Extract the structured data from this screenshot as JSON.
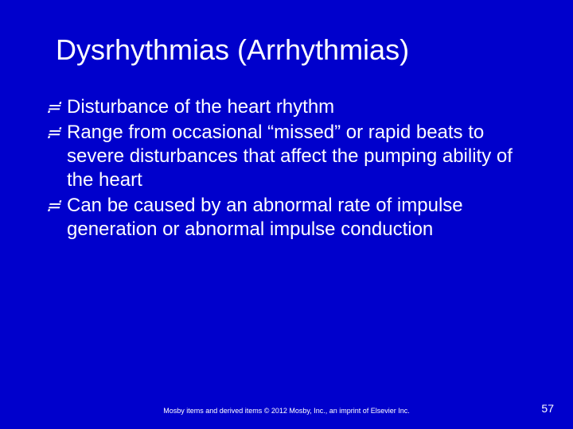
{
  "title": "Dysrhythmias (Arrhythmias)",
  "bullets": [
    "Disturbance of the heart rhythm",
    "Range from occasional “missed” or rapid beats to severe disturbances that affect the pumping ability of the heart",
    "Can be caused by an abnormal rate of impulse generation or abnormal impulse conduction"
  ],
  "copyright": "Mosby items and derived items © 2012 Mosby, Inc., an imprint of Elsevier Inc.",
  "page_number": "57",
  "bullet_marker": "≓",
  "colors": {
    "background": "#0000cc",
    "text": "#ffffff"
  },
  "typography": {
    "title_fontsize": 36,
    "bullet_fontsize": 24,
    "copyright_fontsize": 9,
    "pagenum_fontsize": 14
  }
}
